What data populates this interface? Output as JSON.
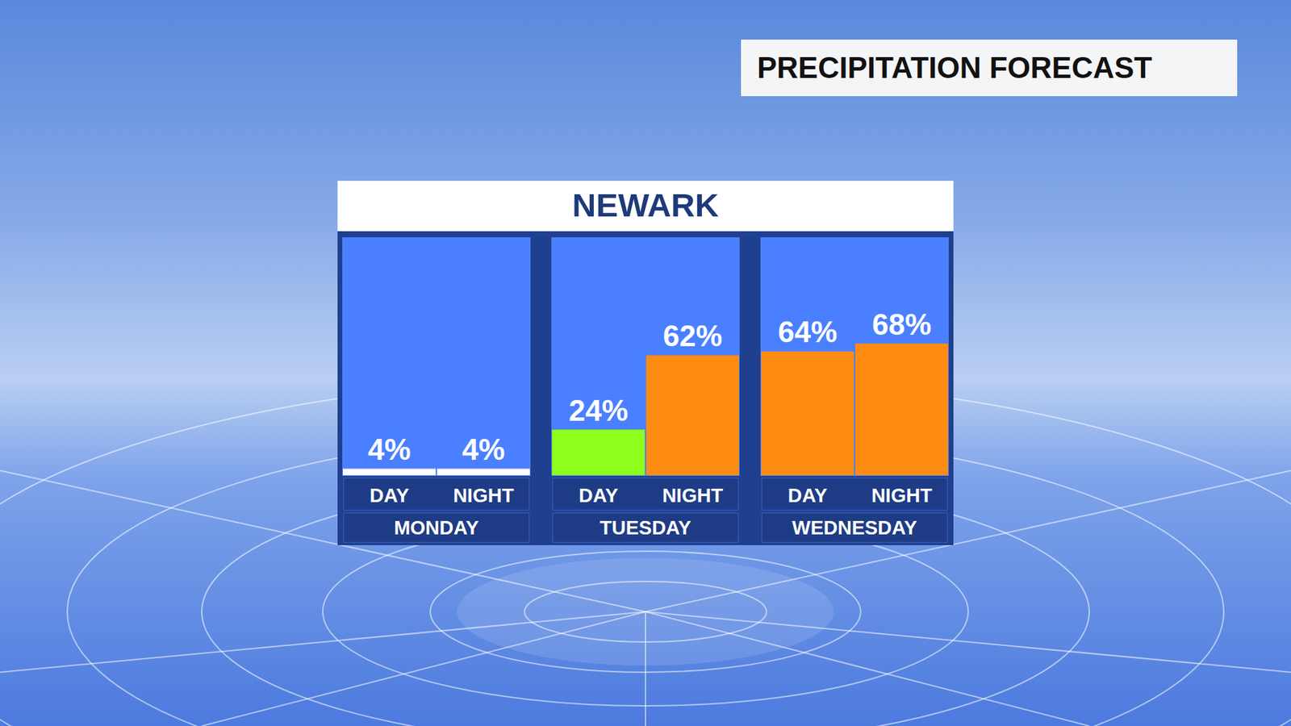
{
  "header": "PRECIPITATION FORECAST",
  "chart_data": {
    "type": "bar",
    "title": "NEWARK",
    "groups": [
      "MONDAY",
      "TUESDAY",
      "WEDNESDAY"
    ],
    "categories": [
      "DAY",
      "NIGHT",
      "DAY",
      "NIGHT",
      "DAY",
      "NIGHT"
    ],
    "values": [
      4,
      4,
      24,
      62,
      64,
      68
    ],
    "value_labels": [
      "4%",
      "4%",
      "24%",
      "62%",
      "64%",
      "68%"
    ],
    "colors": [
      "#ffffff",
      "#ffffff",
      "#8cff1a",
      "#ff8c12",
      "#ff8c12",
      "#ff8c12"
    ],
    "ylim": [
      0,
      122
    ],
    "grid": false,
    "data_labels": true,
    "tick_labels": "x"
  }
}
